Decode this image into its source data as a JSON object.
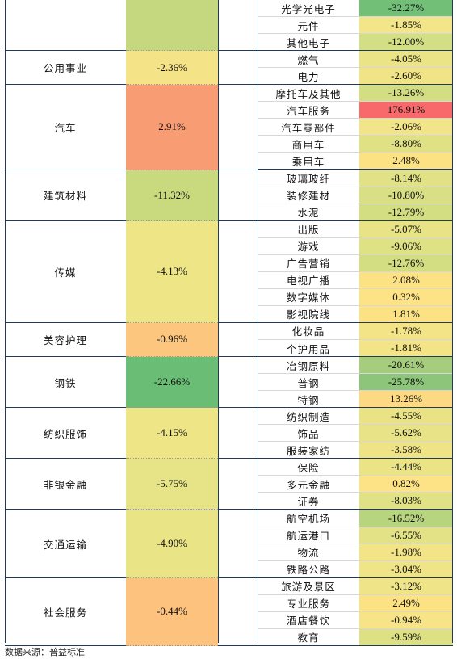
{
  "source": "数据来源：普益标准",
  "groups": [
    {
      "name": "",
      "value": "",
      "color": "#c5d77f",
      "rows": [
        {
          "name": "光学光电子",
          "value": "-32.27%",
          "color": "#72bf78"
        },
        {
          "name": "元件",
          "value": "-1.85%",
          "color": "#f3e58a"
        },
        {
          "name": "其他电子",
          "value": "-12.00%",
          "color": "#d3df84"
        }
      ]
    },
    {
      "name": "公用事业",
      "value": "-2.36%",
      "color": "#f5e388",
      "rows": [
        {
          "name": "燃气",
          "value": "-4.05%",
          "color": "#ebe486"
        },
        {
          "name": "电力",
          "value": "-2.60%",
          "color": "#f1e487"
        }
      ]
    },
    {
      "name": "汽车",
      "value": "2.91%",
      "color": "#f89c73",
      "rows": [
        {
          "name": "摩托车及其他",
          "value": "-13.26%",
          "color": "#d3de83"
        },
        {
          "name": "汽车服务",
          "value": "176.91%",
          "color": "#f8696b"
        },
        {
          "name": "汽车零部件",
          "value": "-2.06%",
          "color": "#f2e488"
        },
        {
          "name": "商用车",
          "value": "-8.80%",
          "color": "#dfe184"
        },
        {
          "name": "乘用车",
          "value": "2.48%",
          "color": "#fde284"
        }
      ]
    },
    {
      "name": "建筑材料",
      "value": "-11.32%",
      "color": "#c8d97e",
      "rows": [
        {
          "name": "玻璃玻纤",
          "value": "-8.14%",
          "color": "#e1e286"
        },
        {
          "name": "装修建材",
          "value": "-10.80%",
          "color": "#d9df85"
        },
        {
          "name": "水泥",
          "value": "-12.79%",
          "color": "#d3de83"
        }
      ]
    },
    {
      "name": "传媒",
      "value": "-4.13%",
      "color": "#ede586",
      "rows": [
        {
          "name": "出版",
          "value": "-5.07%",
          "color": "#e8e386"
        },
        {
          "name": "游戏",
          "value": "-9.06%",
          "color": "#dee184"
        },
        {
          "name": "广告营销",
          "value": "-12.76%",
          "color": "#d3de83"
        },
        {
          "name": "电视广播",
          "value": "2.08%",
          "color": "#fde284"
        },
        {
          "name": "数字媒体",
          "value": "0.32%",
          "color": "#fde385"
        },
        {
          "name": "影视院线",
          "value": "1.81%",
          "color": "#fde284"
        }
      ]
    },
    {
      "name": "美容护理",
      "value": "-0.96%",
      "color": "#fcc67e",
      "rows": [
        {
          "name": "化妆品",
          "value": "-1.78%",
          "color": "#f4e488"
        },
        {
          "name": "个护用品",
          "value": "-1.81%",
          "color": "#f4e488"
        }
      ]
    },
    {
      "name": "钢铁",
      "value": "-22.66%",
      "color": "#69bd74",
      "rows": [
        {
          "name": "冶钢原料",
          "value": "-20.61%",
          "color": "#a5cd7d"
        },
        {
          "name": "普钢",
          "value": "-25.78%",
          "color": "#8dc57a"
        },
        {
          "name": "特钢",
          "value": "13.26%",
          "color": "#fcd982"
        }
      ]
    },
    {
      "name": "纺织服饰",
      "value": "-4.15%",
      "color": "#ede586",
      "rows": [
        {
          "name": "纺织制造",
          "value": "-4.55%",
          "color": "#eae386"
        },
        {
          "name": "饰品",
          "value": "-5.62%",
          "color": "#e7e386"
        },
        {
          "name": "服装家纺",
          "value": "-3.58%",
          "color": "#eee486"
        }
      ]
    },
    {
      "name": "非银金融",
      "value": "-5.75%",
      "color": "#e6e487",
      "rows": [
        {
          "name": "保险",
          "value": "-4.44%",
          "color": "#ebe486"
        },
        {
          "name": "多元金融",
          "value": "0.82%",
          "color": "#fde385"
        },
        {
          "name": "证券",
          "value": "-8.03%",
          "color": "#e1e286"
        }
      ]
    },
    {
      "name": "交通运输",
      "value": "-4.90%",
      "color": "#e9e486",
      "rows": [
        {
          "name": "航空机场",
          "value": "-16.52%",
          "color": "#b7d47f"
        },
        {
          "name": "航运港口",
          "value": "-6.55%",
          "color": "#e4e286"
        },
        {
          "name": "物流",
          "value": "-1.98%",
          "color": "#f3e488"
        },
        {
          "name": "铁路公路",
          "value": "-3.04%",
          "color": "#efe487"
        }
      ]
    },
    {
      "name": "社会服务",
      "value": "-0.44%",
      "color": "#fdc27e",
      "rows": [
        {
          "name": "旅游及景区",
          "value": "-3.12%",
          "color": "#efe487"
        },
        {
          "name": "专业服务",
          "value": "2.49%",
          "color": "#fde284"
        },
        {
          "name": "酒店餐饮",
          "value": "-0.94%",
          "color": "#f7e488"
        },
        {
          "name": "教育",
          "value": "-9.59%",
          "color": "#dde184"
        }
      ]
    }
  ]
}
